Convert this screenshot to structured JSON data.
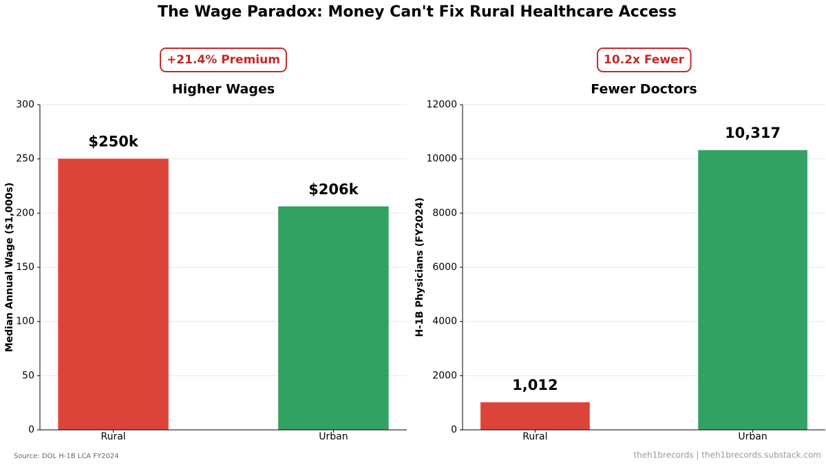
{
  "title": "The Wage Paradox: Money Can't Fix Rural Healthcare Access",
  "source": "Source: DOL H-1B LCA FY2024",
  "credit": "theh1brecords | theh1brecords.substack.com",
  "chart_data": [
    {
      "type": "bar",
      "title": "Higher Wages",
      "annotation": "+21.4% Premium",
      "ylabel": "Median Annual Wage ($1,000s)",
      "categories": [
        "Rural",
        "Urban"
      ],
      "values": [
        250,
        206
      ],
      "value_labels": [
        "$250k",
        "$206k"
      ],
      "colors": [
        "#dc4439",
        "#31a262"
      ],
      "ylim": [
        0,
        300
      ],
      "yticks": [
        0,
        50,
        100,
        150,
        200,
        250,
        300
      ],
      "grid": true
    },
    {
      "type": "bar",
      "title": "Fewer Doctors",
      "annotation": "10.2x Fewer",
      "ylabel": "H-1B Physicians (FY2024)",
      "categories": [
        "Rural",
        "Urban"
      ],
      "values": [
        1012,
        10317
      ],
      "value_labels": [
        "1,012",
        "10,317"
      ],
      "colors": [
        "#dc4439",
        "#31a262"
      ],
      "ylim": [
        0,
        12000
      ],
      "yticks": [
        0,
        2000,
        4000,
        6000,
        8000,
        10000,
        12000
      ],
      "grid": true
    }
  ]
}
